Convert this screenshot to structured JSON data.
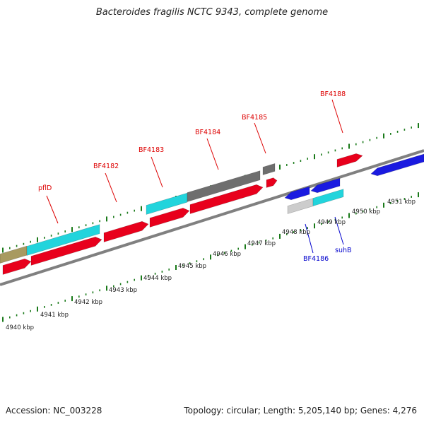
{
  "title": "Bacteroides fragilis NCTC 9343, complete genome",
  "footer": {
    "accession": "Accession: NC_003228",
    "summary": "Topology: circular; Length: 5,205,140 bp; Genes: 4,276"
  },
  "colors": {
    "backbone": "#808080",
    "tick": "#1a7a1a",
    "label_forward": "#dd0000",
    "label_reverse": "#0000cc",
    "cds_red": "#e8001c",
    "cds_blue": "#1a1ae0",
    "cds_cyan": "#22d4dc",
    "cds_gray": "#6e6e6e",
    "cds_light": "#cccccc",
    "cds_olive": "#a89a60"
  },
  "scale": {
    "unit": "kbp",
    "start": 4940,
    "end": 4951
  },
  "kbp_labels": [
    "4940 kbp",
    "4941 kbp",
    "4942 kbp",
    "4943 kbp",
    "4944 kbp",
    "4945 kbp",
    "4946 kbp",
    "4947 kbp",
    "4948 kbp",
    "4949 kbp",
    "4950 kbp",
    "4951 kbp"
  ],
  "gene_labels_forward": [
    "pflD",
    "BF4182",
    "BF4183",
    "BF4184",
    "BF4185",
    "BF4188"
  ],
  "gene_labels_reverse": [
    "BF4186",
    "suhB"
  ]
}
